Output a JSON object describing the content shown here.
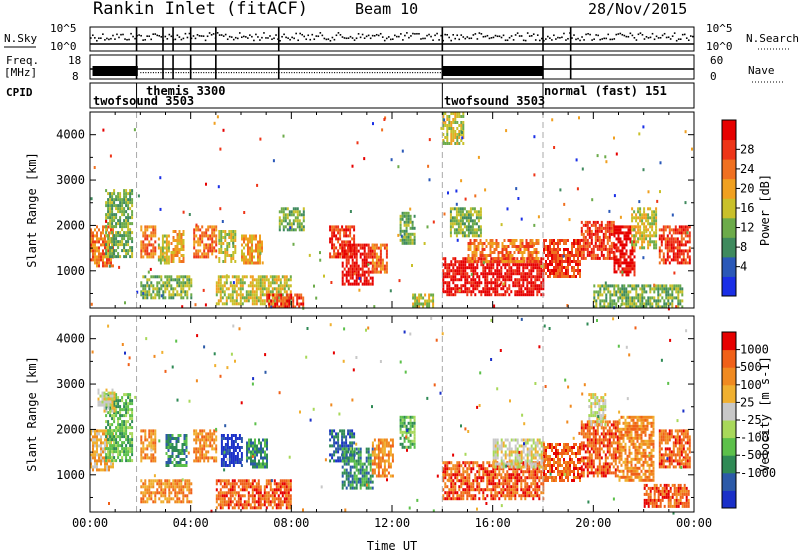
{
  "header": {
    "station": "Rankin Inlet (fitACF)",
    "beam": "Beam 10",
    "date": "28/Nov/2015"
  },
  "summary": {
    "nsky": {
      "label": "N.Sky",
      "ticks": [
        "10^5",
        "10^0"
      ],
      "right_ticks": [
        "10^5",
        "10^0"
      ],
      "right_label": "N.Search"
    },
    "freq": {
      "label_top": "Freq.",
      "label_bottom": "[MHz]",
      "ticks": [
        "18",
        "8"
      ],
      "right_ticks": [
        "60",
        "0"
      ],
      "right_label": "Nave"
    },
    "cpid": {
      "label": "CPID",
      "modes": [
        {
          "name": "twofsound 3503",
          "start": 0.0,
          "end": 1.85
        },
        {
          "name": "themis 3300",
          "start": 1.85,
          "end": 14.0
        },
        {
          "name": "twofsound 3503",
          "start": 14.0,
          "end": 18.0
        },
        {
          "name": "normal (fast) 151",
          "start": 18.0,
          "end": 24.0
        }
      ]
    }
  },
  "chart_data": [
    {
      "type": "heatmap",
      "name": "power",
      "ylabel": "Slant Range [km]",
      "ylim": [
        180,
        4500
      ],
      "yticks": [
        1000,
        2000,
        3000,
        4000
      ],
      "xlim": [
        0,
        24
      ],
      "colorbar": {
        "label": "Power [dB]",
        "ticks": [
          "4",
          "8",
          "12",
          "16",
          "20",
          "24",
          "28"
        ],
        "colors": [
          "#1a2fe6",
          "#2a58b8",
          "#3f8a5e",
          "#6cab4a",
          "#c9c02a",
          "#f0a020",
          "#f07020",
          "#ee3518",
          "#e60000"
        ]
      },
      "regions": [
        {
          "x": [
            0.0,
            0.9
          ],
          "y": [
            1100,
            2000
          ],
          "level": 6
        },
        {
          "x": [
            0.6,
            1.7
          ],
          "y": [
            1300,
            2800
          ],
          "level": 3
        },
        {
          "x": [
            2.0,
            2.6
          ],
          "y": [
            1300,
            2000
          ],
          "level": 6
        },
        {
          "x": [
            2.7,
            3.1
          ],
          "y": [
            1200,
            1800
          ],
          "level": 4
        },
        {
          "x": [
            3.2,
            3.7
          ],
          "y": [
            1200,
            1900
          ],
          "level": 5
        },
        {
          "x": [
            4.1,
            5.0
          ],
          "y": [
            1300,
            2000
          ],
          "level": 6
        },
        {
          "x": [
            5.1,
            5.8
          ],
          "y": [
            1200,
            1900
          ],
          "level": 4
        },
        {
          "x": [
            6.0,
            6.8
          ],
          "y": [
            1200,
            1800
          ],
          "level": 5
        },
        {
          "x": [
            2.0,
            4.0
          ],
          "y": [
            400,
            900
          ],
          "level": 3
        },
        {
          "x": [
            5.0,
            8.0
          ],
          "y": [
            300,
            900
          ],
          "level": 4
        },
        {
          "x": [
            7.0,
            8.5
          ],
          "y": [
            200,
            500
          ],
          "level": 7
        },
        {
          "x": [
            7.5,
            8.5
          ],
          "y": [
            1900,
            2400
          ],
          "level": 3
        },
        {
          "x": [
            9.5,
            10.5
          ],
          "y": [
            1300,
            2000
          ],
          "level": 7
        },
        {
          "x": [
            10.0,
            11.2
          ],
          "y": [
            700,
            1600
          ],
          "level": 8
        },
        {
          "x": [
            11.2,
            11.8
          ],
          "y": [
            1000,
            1600
          ],
          "level": 6
        },
        {
          "x": [
            12.3,
            12.9
          ],
          "y": [
            1600,
            2300
          ],
          "level": 3
        },
        {
          "x": [
            12.8,
            13.6
          ],
          "y": [
            200,
            500
          ],
          "level": 4
        },
        {
          "x": [
            14.0,
            18.0
          ],
          "y": [
            500,
            1300
          ],
          "level": 8
        },
        {
          "x": [
            15.0,
            17.8
          ],
          "y": [
            1200,
            1700
          ],
          "level": 6
        },
        {
          "x": [
            14.3,
            15.5
          ],
          "y": [
            1800,
            2400
          ],
          "level": 3
        },
        {
          "x": [
            18.0,
            19.5
          ],
          "y": [
            900,
            1700
          ],
          "level": 7
        },
        {
          "x": [
            19.5,
            20.8
          ],
          "y": [
            1300,
            2100
          ],
          "level": 7
        },
        {
          "x": [
            20.8,
            21.6
          ],
          "y": [
            900,
            2000
          ],
          "level": 8
        },
        {
          "x": [
            21.5,
            22.5
          ],
          "y": [
            1500,
            2400
          ],
          "level": 4
        },
        {
          "x": [
            22.6,
            23.8
          ],
          "y": [
            1200,
            2000
          ],
          "level": 7
        },
        {
          "x": [
            20.0,
            23.5
          ],
          "y": [
            200,
            700
          ],
          "level": 3
        },
        {
          "x": [
            14.0,
            14.8
          ],
          "y": [
            3800,
            4500
          ],
          "level": 4
        }
      ]
    },
    {
      "type": "heatmap",
      "name": "velocity",
      "ylabel": "Slant Range [km]",
      "xlabel": "Time UT",
      "ylim": [
        180,
        4500
      ],
      "yticks": [
        1000,
        2000,
        3000,
        4000
      ],
      "xlim": [
        0,
        24
      ],
      "xticks": [
        "00:00",
        "04:00",
        "08:00",
        "12:00",
        "16:00",
        "20:00",
        "00:00"
      ],
      "colorbar": {
        "label": "Velocity [m s-1]",
        "ticks": [
          "1000",
          "500",
          "100",
          "25",
          "-25",
          "-100",
          "-500",
          "-1000"
        ],
        "colors": [
          "#1a30c8",
          "#2c5aa8",
          "#2f8a55",
          "#5cc04a",
          "#a8d85a",
          "#c8c8c8",
          "#f0b030",
          "#f08a20",
          "#f06018",
          "#e60000"
        ]
      },
      "regions": [
        {
          "x": [
            0.0,
            0.9
          ],
          "y": [
            1100,
            2000
          ],
          "level": 6
        },
        {
          "x": [
            0.6,
            1.7
          ],
          "y": [
            1300,
            2800
          ],
          "level": 3
        },
        {
          "x": [
            0.3,
            1.0
          ],
          "y": [
            2400,
            2900
          ],
          "level": 5
        },
        {
          "x": [
            2.0,
            2.6
          ],
          "y": [
            1300,
            2000
          ],
          "level": 7
        },
        {
          "x": [
            3.0,
            3.8
          ],
          "y": [
            1200,
            1900
          ],
          "level": 2
        },
        {
          "x": [
            4.1,
            5.0
          ],
          "y": [
            1300,
            2000
          ],
          "level": 7
        },
        {
          "x": [
            5.2,
            6.0
          ],
          "y": [
            1200,
            1900
          ],
          "level": 0
        },
        {
          "x": [
            6.2,
            7.0
          ],
          "y": [
            1200,
            1800
          ],
          "level": 2
        },
        {
          "x": [
            2.0,
            4.0
          ],
          "y": [
            400,
            900
          ],
          "level": 7
        },
        {
          "x": [
            5.0,
            8.0
          ],
          "y": [
            300,
            900
          ],
          "level": 8
        },
        {
          "x": [
            9.5,
            10.5
          ],
          "y": [
            1300,
            2000
          ],
          "level": 1
        },
        {
          "x": [
            10.0,
            11.2
          ],
          "y": [
            700,
            1600
          ],
          "level": 2
        },
        {
          "x": [
            11.2,
            12.0
          ],
          "y": [
            1000,
            1800
          ],
          "level": 7
        },
        {
          "x": [
            12.3,
            12.9
          ],
          "y": [
            1600,
            2300
          ],
          "level": 3
        },
        {
          "x": [
            14.0,
            18.0
          ],
          "y": [
            500,
            1300
          ],
          "level": 8
        },
        {
          "x": [
            16.0,
            18.0
          ],
          "y": [
            1200,
            1800
          ],
          "level": 5
        },
        {
          "x": [
            18.0,
            19.5
          ],
          "y": [
            900,
            1700
          ],
          "level": 8
        },
        {
          "x": [
            19.5,
            21.0
          ],
          "y": [
            1000,
            2200
          ],
          "level": 8
        },
        {
          "x": [
            19.8,
            20.5
          ],
          "y": [
            2100,
            2800
          ],
          "level": 5
        },
        {
          "x": [
            21.0,
            22.4
          ],
          "y": [
            900,
            2300
          ],
          "level": 7
        },
        {
          "x": [
            22.6,
            23.8
          ],
          "y": [
            1200,
            2000
          ],
          "level": 8
        },
        {
          "x": [
            22.0,
            23.8
          ],
          "y": [
            300,
            800
          ],
          "level": 8
        }
      ]
    }
  ]
}
